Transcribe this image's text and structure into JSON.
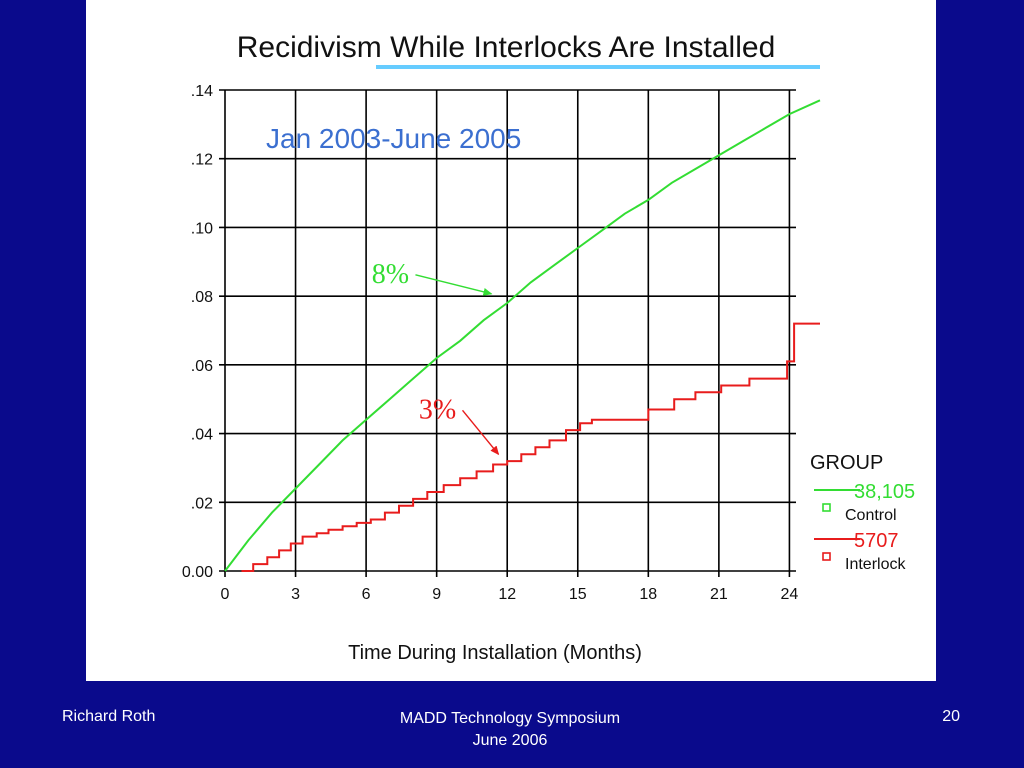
{
  "footer": {
    "presenter": "Richard Roth",
    "event_line1": "MADD Technology Symposium",
    "event_line2": "June 2006",
    "page_number": "20"
  },
  "colors": {
    "background": "#0a0a8c",
    "panel": "#ffffff",
    "control": "#33dd33",
    "interlock": "#e81c1c",
    "title_underline": "#66ccff",
    "subtitle": "#3b6fd0"
  },
  "chart_data": {
    "type": "line",
    "title": "Recidivism While Interlocks Are Installed",
    "subtitle": "Jan 2003-June 2005",
    "xlabel": "Time During Installation (Months)",
    "ylabel": "",
    "xlim": [
      0,
      25.3
    ],
    "ylim": [
      0,
      0.14
    ],
    "xticks": [
      0,
      3,
      6,
      9,
      12,
      15,
      18,
      21,
      24
    ],
    "xtick_labels": [
      "0",
      "3",
      "6",
      "9",
      "12",
      "15",
      "18",
      "21",
      "24"
    ],
    "yticks": [
      0,
      0.02,
      0.04,
      0.06,
      0.08,
      0.1,
      0.12,
      0.14
    ],
    "ytick_labels": [
      "0.00",
      ".02",
      ".04",
      ".06",
      ".08",
      ".10",
      ".12",
      ".14"
    ],
    "grid": true,
    "legend": {
      "title": "GROUP",
      "placement": "right",
      "entries": [
        {
          "count": "38,105",
          "label": "Control"
        },
        {
          "count": "5707",
          "label": "Interlock"
        }
      ]
    },
    "annotations": [
      {
        "text": "8%",
        "series": "Control",
        "x": 11.5,
        "y": 0.0795
      },
      {
        "text": "3%",
        "series": "Interlock",
        "x": 11.8,
        "y": 0.0328
      }
    ],
    "series": [
      {
        "name": "Control",
        "step": false,
        "x": [
          0,
          1,
          2,
          3,
          4,
          5,
          6,
          7,
          8,
          9,
          10,
          11,
          12,
          13,
          14,
          15,
          16,
          17,
          18,
          19,
          20,
          21,
          22,
          23,
          24,
          25.3
        ],
        "y": [
          0,
          0.009,
          0.017,
          0.024,
          0.031,
          0.038,
          0.044,
          0.05,
          0.056,
          0.062,
          0.067,
          0.073,
          0.078,
          0.084,
          0.089,
          0.094,
          0.099,
          0.104,
          0.108,
          0.113,
          0.117,
          0.121,
          0.125,
          0.129,
          0.133,
          0.137
        ]
      },
      {
        "name": "Interlock",
        "step": true,
        "x": [
          0.7,
          1.2,
          1.8,
          2.3,
          2.8,
          3.3,
          3.9,
          4.4,
          5.0,
          5.6,
          6.2,
          6.8,
          7.4,
          8.0,
          8.6,
          9.3,
          10.0,
          10.7,
          11.4,
          12.0,
          12.6,
          13.2,
          13.8,
          14.5,
          15.1,
          15.6,
          18.0,
          19.1,
          20.0,
          21.1,
          22.3,
          23.9,
          24.2,
          25.3
        ],
        "y": [
          0,
          0.002,
          0.004,
          0.006,
          0.008,
          0.01,
          0.011,
          0.012,
          0.013,
          0.014,
          0.015,
          0.017,
          0.019,
          0.021,
          0.023,
          0.025,
          0.027,
          0.029,
          0.031,
          0.032,
          0.034,
          0.036,
          0.038,
          0.041,
          0.043,
          0.044,
          0.047,
          0.05,
          0.052,
          0.054,
          0.056,
          0.061,
          0.072,
          0.072
        ]
      }
    ]
  }
}
